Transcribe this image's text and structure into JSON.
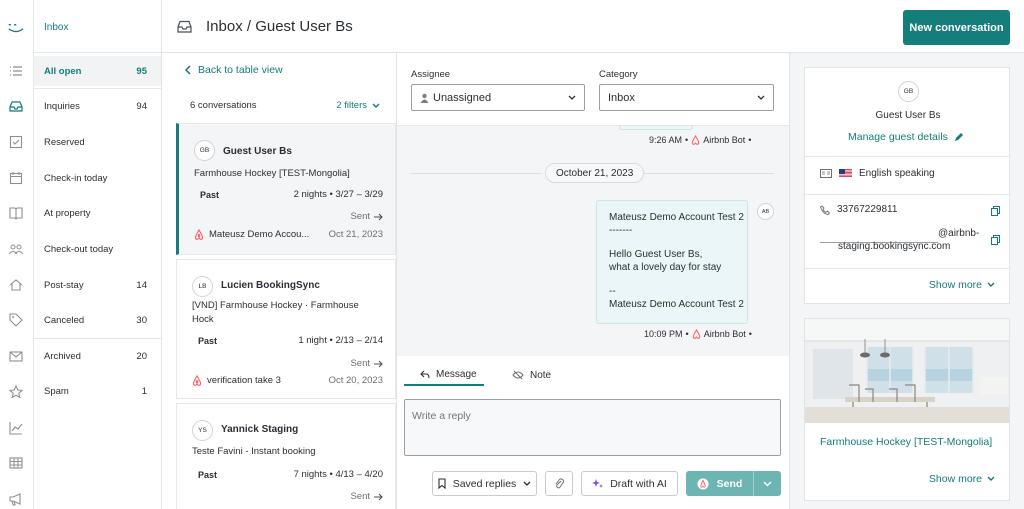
{
  "nav": {
    "header": "Inbox",
    "items": [
      {
        "label": "All open",
        "count": "95"
      },
      {
        "label": "Inquiries",
        "count": "94"
      },
      {
        "label": "Reserved",
        "count": ""
      },
      {
        "label": "Check-in today",
        "count": ""
      },
      {
        "label": "At property",
        "count": ""
      },
      {
        "label": "Check-out today",
        "count": ""
      },
      {
        "label": "Post-stay",
        "count": "14"
      },
      {
        "label": "Canceled",
        "count": "30"
      },
      {
        "label": "Archived",
        "count": "20"
      },
      {
        "label": "Spam",
        "count": "1"
      }
    ]
  },
  "header": {
    "title": "Inbox / Guest User Bs",
    "new_button": "New conversation"
  },
  "list": {
    "back": "Back to table view",
    "count": "6 conversations",
    "filters": "2 filters",
    "conversations": [
      {
        "initials": "GB",
        "name": "Guest User Bs",
        "property": "Farmhouse Hockey [TEST-Mongolia]",
        "status": "Past",
        "stay": "2 nights • 3/27 – 3/29",
        "sent": "Sent",
        "last": "Mateusz Demo Accou...",
        "date": "Oct 21, 2023"
      },
      {
        "initials": "LB",
        "name": "Lucien BookingSync",
        "property": "[VND] Farmhouse Hockey · Farmhouse Hock",
        "status": "Past",
        "stay": "1 night • 2/13 – 2/14",
        "sent": "Sent",
        "last": "verification take 3",
        "date": "Oct 20, 2023"
      },
      {
        "initials": "YS",
        "name": "Yannick Staging",
        "property": "Teste Favini - Instant booking",
        "status": "Past",
        "stay": "7 nights • 4/13 – 4/20",
        "sent": "Sent",
        "last": "",
        "date": ""
      }
    ]
  },
  "chat": {
    "assignee_label": "Assignee",
    "assignee_value": "Unassigned",
    "category_label": "Category",
    "category_value": "Inbox",
    "prev_meta": {
      "time": "9:26 AM",
      "sender": "Airbnb Bot"
    },
    "day": "October 21, 2023",
    "message": {
      "lines": [
        "Mateusz Demo Account Test 2",
        "-------",
        "",
        "Hello Guest User Bs,",
        "what a lovely day for stay",
        "",
        "--",
        "Mateusz Demo Account Test 2"
      ],
      "avatar": "AB",
      "time": "10:09 PM",
      "sender": "Airbnb Bot"
    },
    "tabs": {
      "message": "Message",
      "note": "Note"
    },
    "reply_placeholder": "Write a reply",
    "saved_replies": "Saved replies",
    "draft_ai": "Draft with AI",
    "send": "Send"
  },
  "guest": {
    "initials": "GB",
    "name": "Guest User Bs",
    "manage": "Manage guest details",
    "language": "English speaking",
    "phone": "33767229811",
    "email_tail": "@airbnb-",
    "email_domain": "staging.bookingsync.com",
    "show_more": "Show more"
  },
  "property": {
    "name": "Farmhouse Hockey [TEST-Mongolia]",
    "show_more": "Show more"
  },
  "colors": {
    "accent": "#157d7a",
    "link": "#137c7a",
    "bubble": "#eaf6f7",
    "airbnb": "#ff5a5f"
  }
}
